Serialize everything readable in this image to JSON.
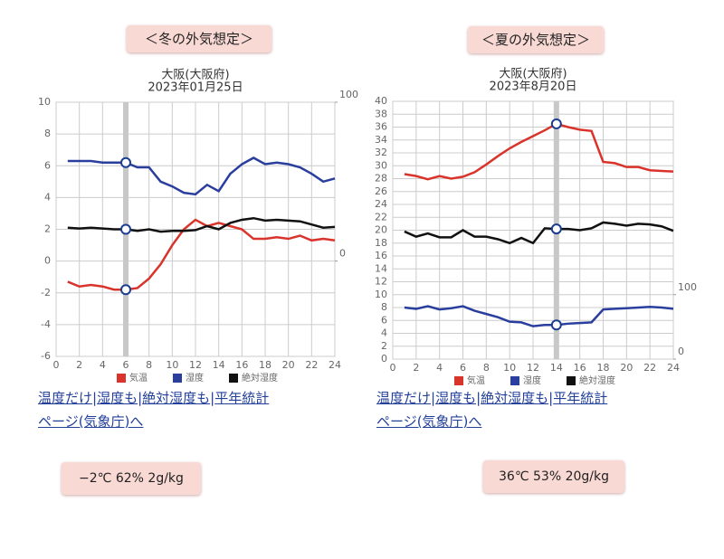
{
  "chart_data": [
    {
      "type": "line",
      "title": "大阪(大阪府)",
      "subtitle": "2023年01月25日",
      "x": [
        1,
        2,
        3,
        4,
        5,
        6,
        7,
        8,
        9,
        10,
        11,
        12,
        13,
        14,
        15,
        16,
        17,
        18,
        19,
        20,
        21,
        22,
        23,
        24
      ],
      "xlim": [
        0,
        24
      ],
      "xticks": [
        0,
        2,
        4,
        6,
        8,
        10,
        12,
        14,
        16,
        18,
        20,
        22,
        24
      ],
      "ylim": [
        -6,
        10
      ],
      "yticks": [
        -6,
        -4,
        -2,
        0,
        2,
        4,
        6,
        8,
        10
      ],
      "y2lim": [
        -60,
        100
      ],
      "y2ticks": [
        0,
        100
      ],
      "grid": true,
      "legend": "bottom",
      "highlight_x": 6,
      "series": [
        {
          "name": "気温",
          "color": "#d9342b",
          "values": [
            -1.3,
            -1.6,
            -1.5,
            -1.6,
            -1.8,
            -1.8,
            -1.7,
            -1.1,
            -0.2,
            1.0,
            2.0,
            2.6,
            2.2,
            2.4,
            2.2,
            2.0,
            1.4,
            1.4,
            1.5,
            1.4,
            1.6,
            1.3,
            1.4,
            1.3
          ]
        },
        {
          "name": "湿度",
          "color": "#2a3e9e",
          "axis": "y2",
          "values": [
            63,
            63,
            63,
            62,
            62,
            62,
            59,
            59,
            50,
            47,
            43,
            42,
            48,
            44,
            55,
            61,
            65,
            61,
            62,
            61,
            59,
            55,
            50,
            52
          ]
        },
        {
          "name": "絶対湿度",
          "color": "#111111",
          "values": [
            2.1,
            2.05,
            2.1,
            2.05,
            2.0,
            2.0,
            1.9,
            2.0,
            1.85,
            1.9,
            1.9,
            1.95,
            2.2,
            2.0,
            2.4,
            2.6,
            2.7,
            2.55,
            2.6,
            2.55,
            2.5,
            2.3,
            2.1,
            2.15
          ]
        }
      ]
    },
    {
      "type": "line",
      "title": "大阪(大阪府)",
      "subtitle": "2023年8月20日",
      "x": [
        1,
        2,
        3,
        4,
        5,
        6,
        7,
        8,
        9,
        10,
        11,
        12,
        13,
        14,
        15,
        16,
        17,
        18,
        19,
        20,
        21,
        22,
        23,
        24
      ],
      "xlim": [
        0,
        24
      ],
      "xticks": [
        0,
        2,
        4,
        6,
        8,
        10,
        12,
        14,
        16,
        18,
        20,
        22,
        24
      ],
      "ylim": [
        0,
        40
      ],
      "yticks": [
        0,
        2,
        4,
        6,
        8,
        10,
        12,
        14,
        16,
        18,
        20,
        22,
        24,
        26,
        28,
        30,
        32,
        34,
        36,
        38,
        40
      ],
      "y2lim": [
        0,
        400
      ],
      "y2ticks": [
        0,
        100
      ],
      "grid": true,
      "legend": "bottom",
      "highlight_x": 14,
      "series": [
        {
          "name": "気温",
          "color": "#d9342b",
          "values": [
            28.7,
            28.4,
            27.9,
            28.4,
            28.0,
            28.3,
            29.0,
            30.2,
            31.5,
            32.7,
            33.7,
            34.6,
            35.5,
            36.5,
            36.0,
            35.6,
            35.4,
            30.6,
            30.4,
            29.8,
            29.8,
            29.3,
            29.2,
            29.1
          ]
        },
        {
          "name": "湿度",
          "color": "#2a3e9e",
          "axis": "y2",
          "values": [
            80,
            78,
            82,
            77,
            79,
            82,
            75,
            70,
            65,
            58,
            57,
            51,
            53,
            53,
            55,
            56,
            57,
            77,
            78,
            79,
            80,
            81,
            80,
            78
          ]
        },
        {
          "name": "絶対湿度",
          "color": "#111111",
          "values": [
            19.8,
            19.0,
            19.5,
            18.9,
            18.9,
            20.0,
            19.0,
            19.0,
            18.6,
            18.0,
            18.8,
            18.0,
            20.3,
            20.2,
            20.2,
            20.0,
            20.3,
            21.2,
            21.0,
            20.7,
            21.0,
            20.9,
            20.6,
            19.9
          ]
        }
      ]
    }
  ],
  "panels": [
    {
      "heading": "＜冬の外気想定＞",
      "links": [
        "温度だけ",
        "湿度も",
        "絶対湿度も",
        "平年統計ページ(気象庁)へ"
      ],
      "separator": "|",
      "summary": "−2℃ 62% 2g/kg"
    },
    {
      "heading": "＜夏の外気想定＞",
      "links": [
        "温度だけ",
        "湿度も",
        "絶対湿度も",
        "平年統計ページ(気象庁)へ"
      ],
      "separator": "|",
      "summary": "36℃ 53% 20g/kg"
    }
  ]
}
